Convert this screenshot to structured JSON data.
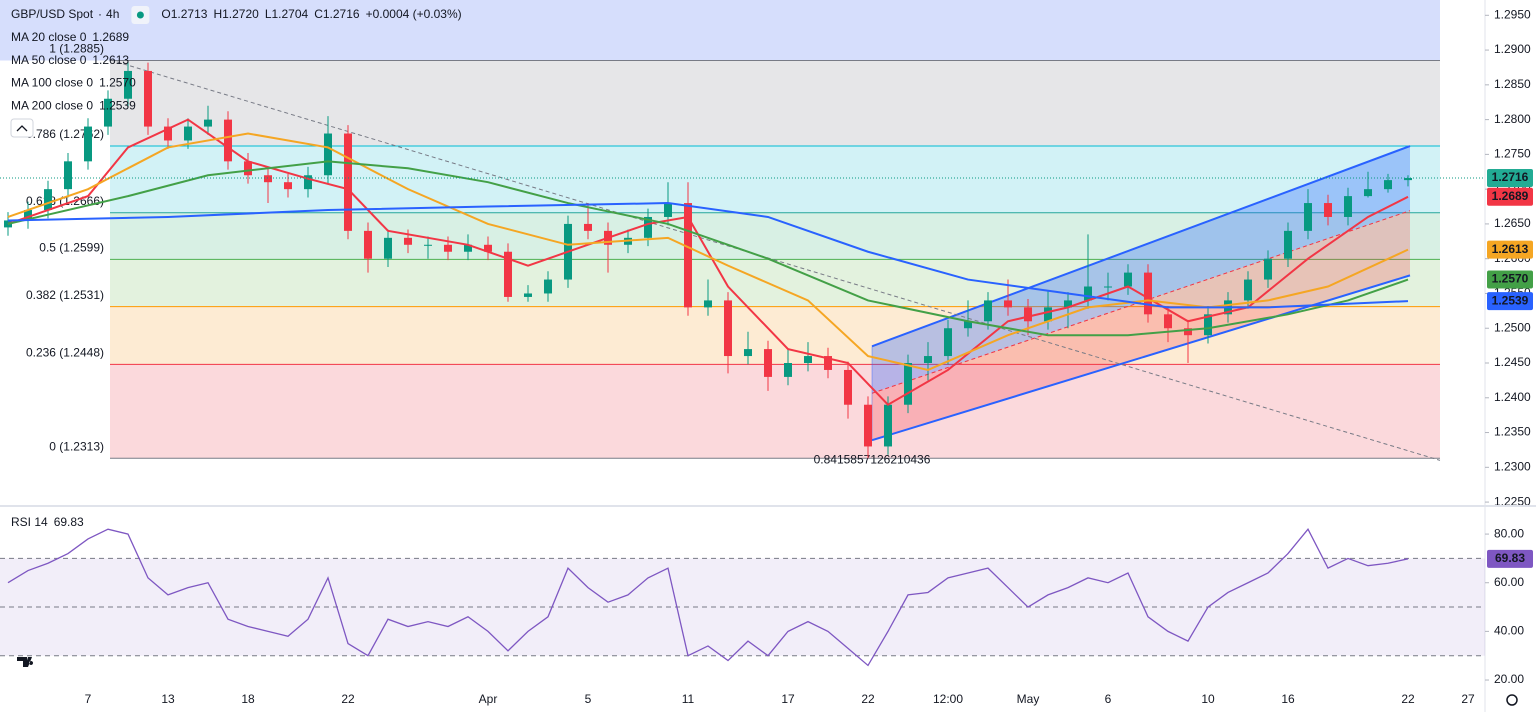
{
  "chart_data": [
    {
      "type": "candlestick",
      "title": "GBP/USD Spot",
      "interval": "4h",
      "ohlc": [
        "O1.2713",
        "H1.2720",
        "L1.2704",
        "C1.2716",
        "+0.0004 (+0.03%)"
      ],
      "up_color": "#089981",
      "down_color": "#f23645",
      "categories": [
        null,
        null,
        null,
        null,
        "7",
        null,
        null,
        null,
        "13",
        null,
        null,
        null,
        "18",
        null,
        null,
        null,
        null,
        "22",
        null,
        null,
        null,
        null,
        null,
        null,
        "Apr",
        null,
        null,
        null,
        null,
        "5",
        null,
        null,
        null,
        null,
        "11",
        null,
        null,
        null,
        null,
        "17",
        null,
        null,
        null,
        "22",
        null,
        null,
        null,
        "12:00",
        null,
        null,
        null,
        "May",
        null,
        null,
        null,
        "6",
        null,
        null,
        null,
        null,
        "10",
        null,
        null,
        null,
        "16",
        null,
        null,
        null,
        null,
        null,
        "22",
        null,
        null,
        "27"
      ],
      "open": [
        1.2645,
        1.2655,
        1.267,
        1.27,
        1.274,
        1.279,
        1.283,
        1.287,
        1.279,
        1.277,
        1.279,
        1.28,
        1.274,
        1.272,
        1.271,
        1.27,
        1.272,
        1.278,
        1.264,
        1.26,
        1.263,
        1.262,
        1.262,
        1.261,
        1.262,
        1.261,
        1.2545,
        1.255,
        1.257,
        1.265,
        1.264,
        1.262,
        1.263,
        1.266,
        1.268,
        1.253,
        1.254,
        1.246,
        1.247,
        1.243,
        1.245,
        1.246,
        1.244,
        1.239,
        1.233,
        1.239,
        1.245,
        1.246,
        1.25,
        1.251,
        1.254,
        1.253,
        1.251,
        1.253,
        1.254,
        1.256,
        1.256,
        1.258,
        1.252,
        1.25,
        1.249,
        1.252,
        1.254,
        1.257,
        1.26,
        1.264,
        1.268,
        1.266,
        1.269,
        1.27,
        1.2713,
        null,
        null,
        null
      ],
      "high": [
        1.2667,
        1.2682,
        1.2712,
        1.2752,
        1.2802,
        1.2842,
        1.2885,
        1.2882,
        1.2802,
        1.2802,
        1.282,
        1.2812,
        1.2752,
        1.2732,
        1.2722,
        1.2732,
        1.2805,
        1.2792,
        1.2652,
        1.2642,
        1.2642,
        1.2632,
        1.2632,
        1.2635,
        1.2632,
        1.2622,
        1.2562,
        1.2582,
        1.2662,
        1.268,
        1.2652,
        1.2642,
        1.2672,
        1.271,
        1.271,
        1.257,
        1.2552,
        1.2495,
        1.2482,
        1.247,
        1.248,
        1.2472,
        1.2452,
        1.2402,
        1.2402,
        1.2462,
        1.248,
        1.2512,
        1.254,
        1.2552,
        1.257,
        1.2542,
        1.2555,
        1.2552,
        1.2635,
        1.258,
        1.2592,
        1.2592,
        1.2532,
        1.2512,
        1.2532,
        1.2552,
        1.2582,
        1.2612,
        1.2652,
        1.27,
        1.2692,
        1.2702,
        1.2725,
        1.2722,
        1.272,
        null,
        null,
        null
      ],
      "low": [
        1.2633,
        1.2643,
        1.2658,
        1.2688,
        1.2728,
        1.2778,
        1.2818,
        1.2778,
        1.2758,
        1.2758,
        1.2778,
        1.2728,
        1.2708,
        1.268,
        1.2688,
        1.2688,
        1.2708,
        1.2628,
        1.258,
        1.2588,
        1.2608,
        1.26,
        1.2598,
        1.2598,
        1.2598,
        1.2538,
        1.2538,
        1.2538,
        1.2558,
        1.2628,
        1.258,
        1.2608,
        1.2618,
        1.2648,
        1.2518,
        1.2518,
        1.2435,
        1.2448,
        1.241,
        1.2418,
        1.2438,
        1.2428,
        1.237,
        1.2313,
        1.2318,
        1.2378,
        1.2425,
        1.2448,
        1.2488,
        1.2498,
        1.2518,
        1.249,
        1.2498,
        1.25,
        1.2528,
        1.254,
        1.2548,
        1.2508,
        1.248,
        1.245,
        1.2478,
        1.2508,
        1.2528,
        1.2558,
        1.2588,
        1.2628,
        1.2648,
        1.2648,
        1.2688,
        1.2695,
        1.2704,
        null,
        null,
        null
      ],
      "close": [
        1.2655,
        1.267,
        1.27,
        1.274,
        1.279,
        1.283,
        1.287,
        1.279,
        1.277,
        1.279,
        1.28,
        1.274,
        1.272,
        1.271,
        1.27,
        1.272,
        1.278,
        1.264,
        1.26,
        1.263,
        1.262,
        1.262,
        1.261,
        1.262,
        1.261,
        1.2545,
        1.255,
        1.257,
        1.265,
        1.264,
        1.262,
        1.263,
        1.266,
        1.268,
        1.253,
        1.254,
        1.246,
        1.247,
        1.243,
        1.245,
        1.246,
        1.244,
        1.239,
        1.233,
        1.239,
        1.245,
        1.246,
        1.25,
        1.251,
        1.254,
        1.253,
        1.251,
        1.253,
        1.254,
        1.256,
        1.256,
        1.258,
        1.252,
        1.25,
        1.249,
        1.252,
        1.254,
        1.257,
        1.26,
        1.264,
        1.268,
        1.266,
        1.269,
        1.27,
        1.2713,
        1.2716,
        null,
        null,
        null
      ],
      "overlays": [
        {
          "name": "MA 20 close 0",
          "color": "#f23645",
          "x": [
            0,
            4,
            6,
            9,
            12,
            15,
            17,
            19,
            23,
            26,
            28,
            32,
            34,
            36,
            39,
            42,
            44,
            47,
            50,
            53,
            56,
            59,
            62,
            65,
            68,
            70
          ],
          "values": [
            1.265,
            1.269,
            1.276,
            1.28,
            1.274,
            1.2715,
            1.27,
            1.264,
            1.262,
            1.259,
            1.261,
            1.265,
            1.266,
            1.256,
            1.247,
            1.245,
            1.239,
            1.244,
            1.251,
            1.253,
            1.256,
            1.251,
            1.253,
            1.26,
            1.266,
            1.2689
          ],
          "value_labels": [
            null,
            null,
            null,
            null,
            null,
            null,
            null,
            null,
            null,
            null,
            null,
            null,
            null,
            null,
            null,
            null,
            null,
            null,
            null,
            null,
            null,
            null,
            null,
            null,
            null,
            "1.2689"
          ]
        },
        {
          "name": "MA 50 close 0",
          "color": "#f5a623",
          "x": [
            0,
            4,
            8,
            12,
            16,
            20,
            24,
            28,
            33,
            36,
            40,
            43,
            46,
            50,
            54,
            57,
            60,
            63,
            66,
            70
          ],
          "values": [
            1.266,
            1.27,
            1.276,
            1.278,
            1.276,
            1.27,
            1.265,
            1.262,
            1.263,
            1.259,
            1.254,
            1.246,
            1.244,
            1.249,
            1.253,
            1.254,
            1.253,
            1.254,
            1.256,
            1.2613
          ],
          "value_labels": [
            null,
            null,
            null,
            null,
            null,
            null,
            null,
            null,
            null,
            null,
            null,
            null,
            null,
            null,
            null,
            null,
            null,
            null,
            null,
            "1.2613"
          ]
        },
        {
          "name": "MA 100 close 0",
          "color": "#43a047",
          "x": [
            0,
            6,
            10,
            16,
            20,
            24,
            28,
            33,
            38,
            43,
            48,
            52,
            56,
            60,
            64,
            67,
            70
          ],
          "values": [
            1.265,
            1.269,
            1.272,
            1.274,
            1.273,
            1.271,
            1.268,
            1.265,
            1.26,
            1.254,
            1.251,
            1.249,
            1.249,
            1.25,
            1.252,
            1.254,
            1.257
          ],
          "value_labels": [
            null,
            null,
            null,
            null,
            null,
            null,
            null,
            null,
            null,
            null,
            null,
            null,
            null,
            null,
            null,
            null,
            "1.2570"
          ]
        },
        {
          "name": "MA 200 close 0",
          "color": "#2962ff",
          "x": [
            0,
            8,
            16,
            24,
            33,
            38,
            43,
            48,
            53,
            58,
            63,
            70
          ],
          "values": [
            1.2655,
            1.266,
            1.267,
            1.2675,
            1.268,
            1.266,
            1.261,
            1.257,
            1.255,
            1.253,
            1.253,
            1.2539
          ],
          "value_labels": [
            null,
            null,
            null,
            null,
            null,
            null,
            null,
            null,
            null,
            null,
            null,
            "1.2539"
          ]
        }
      ],
      "fib": {
        "x": [
          5.1,
          71.6
        ],
        "upper_fill": "#d6defc",
        "levels": [
          {
            "label": "1 (1.2885)",
            "value": 1.2885,
            "color": "#787b86",
            "fill": "#e6e6e8"
          },
          {
            "label": "0.786 (1.2762)",
            "value": 1.2762,
            "color": "#00bcd4",
            "fill": "#d2f2f6"
          },
          {
            "label": "0.618 (1.2666)",
            "value": 1.2666,
            "color": "#26a69a",
            "fill": "#d8f0e4"
          },
          {
            "label": "0.5 (1.2599)",
            "value": 1.2599,
            "color": "#4caf50",
            "fill": "#e3f2de"
          },
          {
            "label": "0.382 (1.2531)",
            "value": 1.2531,
            "color": "#ff9800",
            "fill": "#fdebd3"
          },
          {
            "label": "0.236 (1.2448)",
            "value": 1.2448,
            "color": "#f23645",
            "fill": "#fbd9dc"
          },
          {
            "label": "0 (1.2313)",
            "value": 1.2313,
            "color": "#787b86"
          }
        ]
      },
      "channel": {
        "x": [
          43.2,
          70.1
        ],
        "upper": [
          1.2474,
          1.2762
        ],
        "lower": [
          1.2339,
          1.2576
        ],
        "color": "#2962ff"
      },
      "trendline": {
        "x": [
          5.1,
          71.6
        ],
        "values": [
          1.2886,
          1.231
        ]
      },
      "annotation": "0.8415857126210436",
      "ylim": [
        1.2253,
        1.2972
      ],
      "yticks": [
        {
          "value": 1.225,
          "label": "1.2250"
        },
        {
          "value": 1.23,
          "label": "1.2300"
        },
        {
          "value": 1.235,
          "label": "1.2350"
        },
        {
          "value": 1.24,
          "label": "1.2400"
        },
        {
          "value": 1.245,
          "label": "1.2450"
        },
        {
          "value": 1.25,
          "label": "1.2500"
        },
        {
          "value": 1.255,
          "label": "1.2550"
        },
        {
          "value": 1.26,
          "label": "1.2600"
        },
        {
          "value": 1.265,
          "label": "1.2650"
        },
        {
          "value": 1.27,
          "label": "1.2700"
        },
        {
          "value": 1.275,
          "label": "1.2750"
        },
        {
          "value": 1.28,
          "label": "1.2800"
        },
        {
          "value": 1.285,
          "label": "1.2850"
        },
        {
          "value": 1.29,
          "label": "1.2900"
        },
        {
          "value": 1.295,
          "label": "1.2950"
        }
      ]
    },
    {
      "type": "line",
      "title": "RSI 14",
      "color": "#7e57c2",
      "values": [
        60,
        65,
        68,
        72,
        78,
        82,
        80,
        62,
        55,
        58,
        60,
        45,
        42,
        40,
        38,
        45,
        62,
        35,
        30,
        45,
        42,
        44,
        42,
        46,
        40,
        32,
        40,
        46,
        66,
        58,
        52,
        55,
        62,
        66,
        30,
        34,
        28,
        36,
        30,
        40,
        44,
        40,
        33,
        26,
        40,
        55,
        56,
        62,
        64,
        66,
        58,
        50,
        55,
        58,
        62,
        60,
        64,
        46,
        40,
        36,
        50,
        56,
        60,
        64,
        72,
        82,
        66,
        70,
        67,
        68,
        69.83,
        null,
        null,
        null
      ],
      "levels": [
        70,
        50,
        30
      ],
      "ylim": [
        15.9,
        89.9
      ],
      "yticks": [
        {
          "value": 20,
          "label": "20.00"
        },
        {
          "value": 40,
          "label": "40.00"
        },
        {
          "value": 60,
          "label": "60.00"
        },
        {
          "value": 80,
          "label": "80.00"
        }
      ]
    }
  ]
}
